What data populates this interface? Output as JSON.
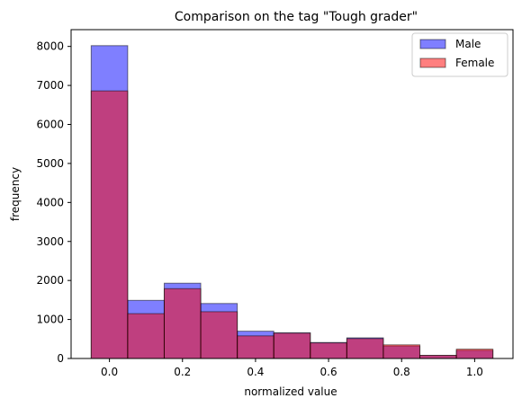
{
  "chart_data": {
    "type": "bar",
    "title": "Comparison on the tag \"Tough grader\"",
    "xlabel": "normalized value",
    "ylabel": "frequency",
    "bin_edges": [
      -0.05,
      0.05,
      0.15,
      0.25,
      0.35,
      0.45,
      0.55,
      0.65,
      0.75,
      0.85,
      0.95,
      1.05
    ],
    "xlim": [
      -0.105,
      1.105
    ],
    "ylim": [
      0,
      8430
    ],
    "xticks": [
      0.0,
      0.2,
      0.4,
      0.6,
      0.8,
      1.0
    ],
    "xtick_labels": [
      "0.0",
      "0.2",
      "0.4",
      "0.6",
      "0.8",
      "1.0"
    ],
    "yticks": [
      0,
      1000,
      2000,
      3000,
      4000,
      5000,
      6000,
      7000,
      8000
    ],
    "ytick_labels": [
      "0",
      "1000",
      "2000",
      "3000",
      "4000",
      "5000",
      "6000",
      "7000",
      "8000"
    ],
    "legend_position": "top-right",
    "series": [
      {
        "name": "Male",
        "color": "#0000ff",
        "alpha": 0.5,
        "values": [
          8020,
          1490,
          1930,
          1410,
          700,
          660,
          410,
          530,
          320,
          80,
          210
        ]
      },
      {
        "name": "Female",
        "color": "#ff0000",
        "alpha": 0.5,
        "values": [
          6860,
          1150,
          1790,
          1200,
          580,
          650,
          400,
          510,
          350,
          80,
          240
        ]
      }
    ]
  }
}
